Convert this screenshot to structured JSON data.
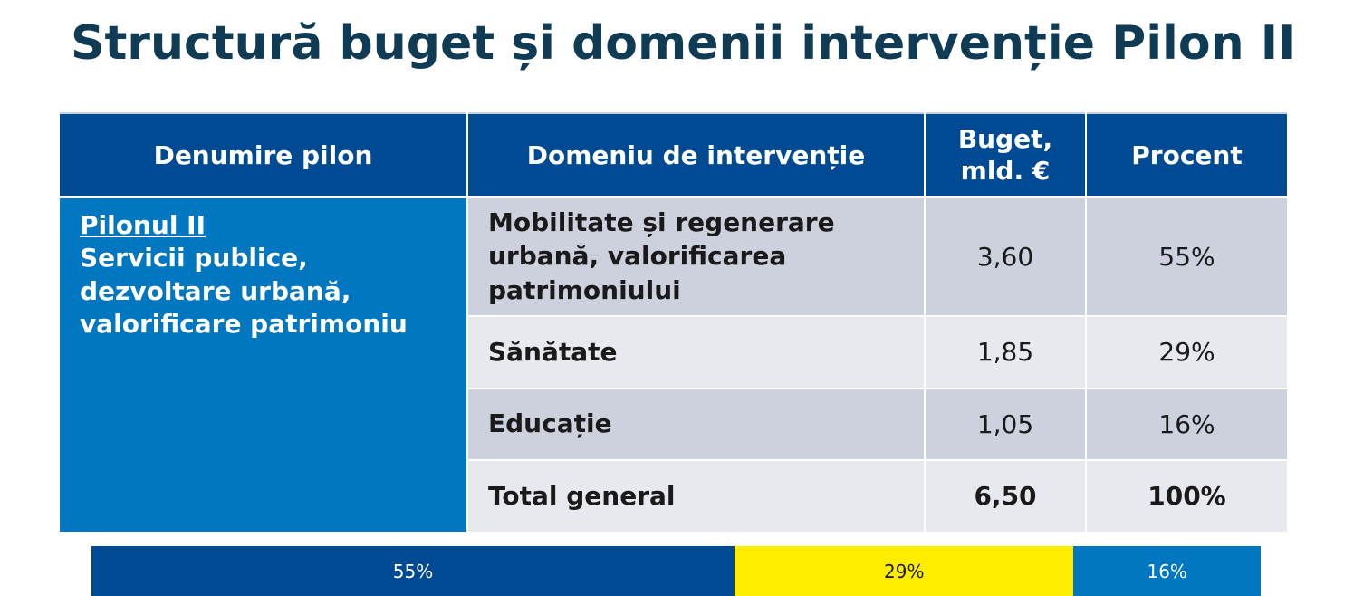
{
  "title": "Structură buget și domenii intervenție Pilon II",
  "table": {
    "headers": [
      "Denumire pilon",
      "Domeniu de intervenție",
      "Buget, mld. €",
      "Procent"
    ],
    "pilon": {
      "name": "Pilonul II",
      "description": "Servicii publice, dezvoltare urbană, valorificare patrimoniu"
    },
    "rows": [
      {
        "domain": "Mobilitate și regenerare urbană, valorificarea patrimoniului",
        "budget": "3,60",
        "percent": "55%"
      },
      {
        "domain": "Sănătate",
        "budget": "1,85",
        "percent": "29%"
      },
      {
        "domain": "Educație",
        "budget": "1,05",
        "percent": "16%"
      },
      {
        "domain": "Total general",
        "budget": "6,50",
        "percent": "100%"
      }
    ]
  },
  "bar": {
    "segments": [
      {
        "label": "55%",
        "value": 55,
        "color": "#004a93"
      },
      {
        "label": "29%",
        "value": 29,
        "color": "#ffed00"
      },
      {
        "label": "16%",
        "value": 16,
        "color": "#0077c0"
      }
    ]
  }
}
